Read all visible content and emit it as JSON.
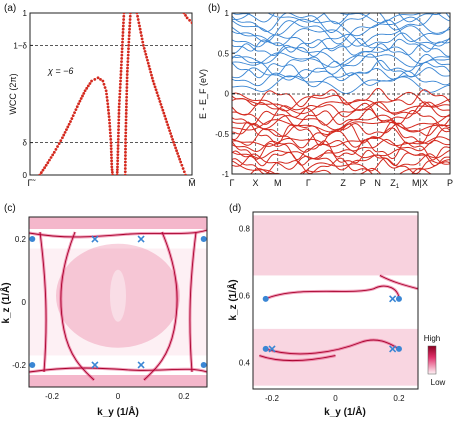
{
  "panel_labels": {
    "a": "(a)",
    "b": "(b)",
    "c": "(c)",
    "d": "(d)"
  },
  "colors": {
    "red": "#d42a1f",
    "blue": "#3a86d4",
    "spot_pink": "#e0306a",
    "marker_blue": "#3a86d4"
  },
  "chart_data": [
    {
      "type": "scatter",
      "panel": "(a)",
      "ylabel": "WCC (2π)",
      "yticks": [
        "0",
        "δ",
        "1−δ",
        "1"
      ],
      "xticks": [
        "Γ̃",
        "M̃"
      ],
      "annotation": "χ = −6",
      "reference_lines": [
        "δ",
        "1−δ"
      ],
      "series": [
        {
          "points": [
            [
              0.06,
              0.0
            ],
            [
              0.1,
              0.06
            ],
            [
              0.15,
              0.14
            ],
            [
              0.2,
              0.23
            ],
            [
              0.25,
              0.33
            ],
            [
              0.3,
              0.44
            ],
            [
              0.34,
              0.52
            ],
            [
              0.38,
              0.58
            ],
            [
              0.42,
              0.6
            ],
            [
              0.45,
              0.58
            ],
            [
              0.47,
              0.52
            ],
            [
              0.48,
              0.44
            ],
            [
              0.49,
              0.34
            ],
            [
              0.5,
              0.2
            ],
            [
              0.505,
              0.05
            ],
            [
              0.51,
              0.0
            ]
          ]
        },
        {
          "points": [
            [
              0.58,
              1.0
            ],
            [
              0.57,
              0.8
            ],
            [
              0.56,
              0.6
            ],
            [
              0.55,
              0.42
            ],
            [
              0.545,
              0.22
            ],
            [
              0.54,
              0.05
            ],
            [
              0.538,
              0.0
            ]
          ]
        },
        {
          "points": [
            [
              0.62,
              1.0
            ],
            [
              0.61,
              0.82
            ],
            [
              0.6,
              0.62
            ],
            [
              0.595,
              0.42
            ],
            [
              0.59,
              0.22
            ],
            [
              0.588,
              0.0
            ]
          ]
        },
        {
          "points": [
            [
              0.66,
              1.0
            ],
            [
              0.7,
              0.8
            ],
            [
              0.76,
              0.58
            ],
            [
              0.82,
              0.4
            ],
            [
              0.88,
              0.22
            ],
            [
              0.93,
              0.08
            ],
            [
              0.96,
              0.0
            ]
          ]
        },
        {
          "points": [
            [
              0.95,
              1.0
            ],
            [
              0.97,
              0.97
            ],
            [
              1.0,
              0.94
            ]
          ]
        }
      ]
    },
    {
      "type": "line",
      "panel": "(b)",
      "ylabel": "E - E_F (eV)",
      "yticks": [
        "-1",
        "-0.5",
        "0",
        "0.5",
        "1"
      ],
      "ylim": [
        -1,
        1
      ],
      "xticks": [
        "Γ",
        "X",
        "M",
        "Γ",
        "Z",
        "P",
        "N",
        "Z1",
        "M|X",
        "P"
      ]
    },
    {
      "type": "heatmap",
      "panel": "(c)",
      "xlabel": "k_y (1/Å)",
      "ylabel": "k_z (1/Å)",
      "xticks": [
        "-0.2",
        "0",
        "0.2"
      ],
      "yticks": [
        "-0.2",
        "0",
        "0.2"
      ],
      "xlim": [
        -0.27,
        0.27
      ],
      "ylim": [
        -0.27,
        0.27
      ],
      "dots": [
        [
          -0.26,
          0.2
        ],
        [
          0.26,
          0.2
        ],
        [
          -0.26,
          -0.2
        ],
        [
          0.26,
          -0.2
        ]
      ],
      "crosses": [
        [
          -0.07,
          0.2
        ],
        [
          0.07,
          0.2
        ],
        [
          -0.07,
          -0.2
        ],
        [
          0.07,
          -0.2
        ]
      ]
    },
    {
      "type": "heatmap",
      "panel": "(d)",
      "xlabel": "k_y (1/Å)",
      "ylabel": "k_z (1/Å)",
      "xticks": [
        "-0.2",
        "0",
        "0.2"
      ],
      "yticks": [
        "0.4",
        "0.6",
        "0.8"
      ],
      "xlim": [
        -0.26,
        0.26
      ],
      "ylim": [
        0.32,
        0.85
      ],
      "colorbar": {
        "high": "High",
        "low": "Low"
      },
      "dots": [
        [
          -0.22,
          0.59
        ],
        [
          0.2,
          0.59
        ],
        [
          -0.22,
          0.44
        ],
        [
          0.2,
          0.44
        ]
      ],
      "crosses": [
        [
          0.18,
          0.59
        ],
        [
          -0.2,
          0.44
        ],
        [
          0.18,
          0.44
        ]
      ]
    }
  ]
}
